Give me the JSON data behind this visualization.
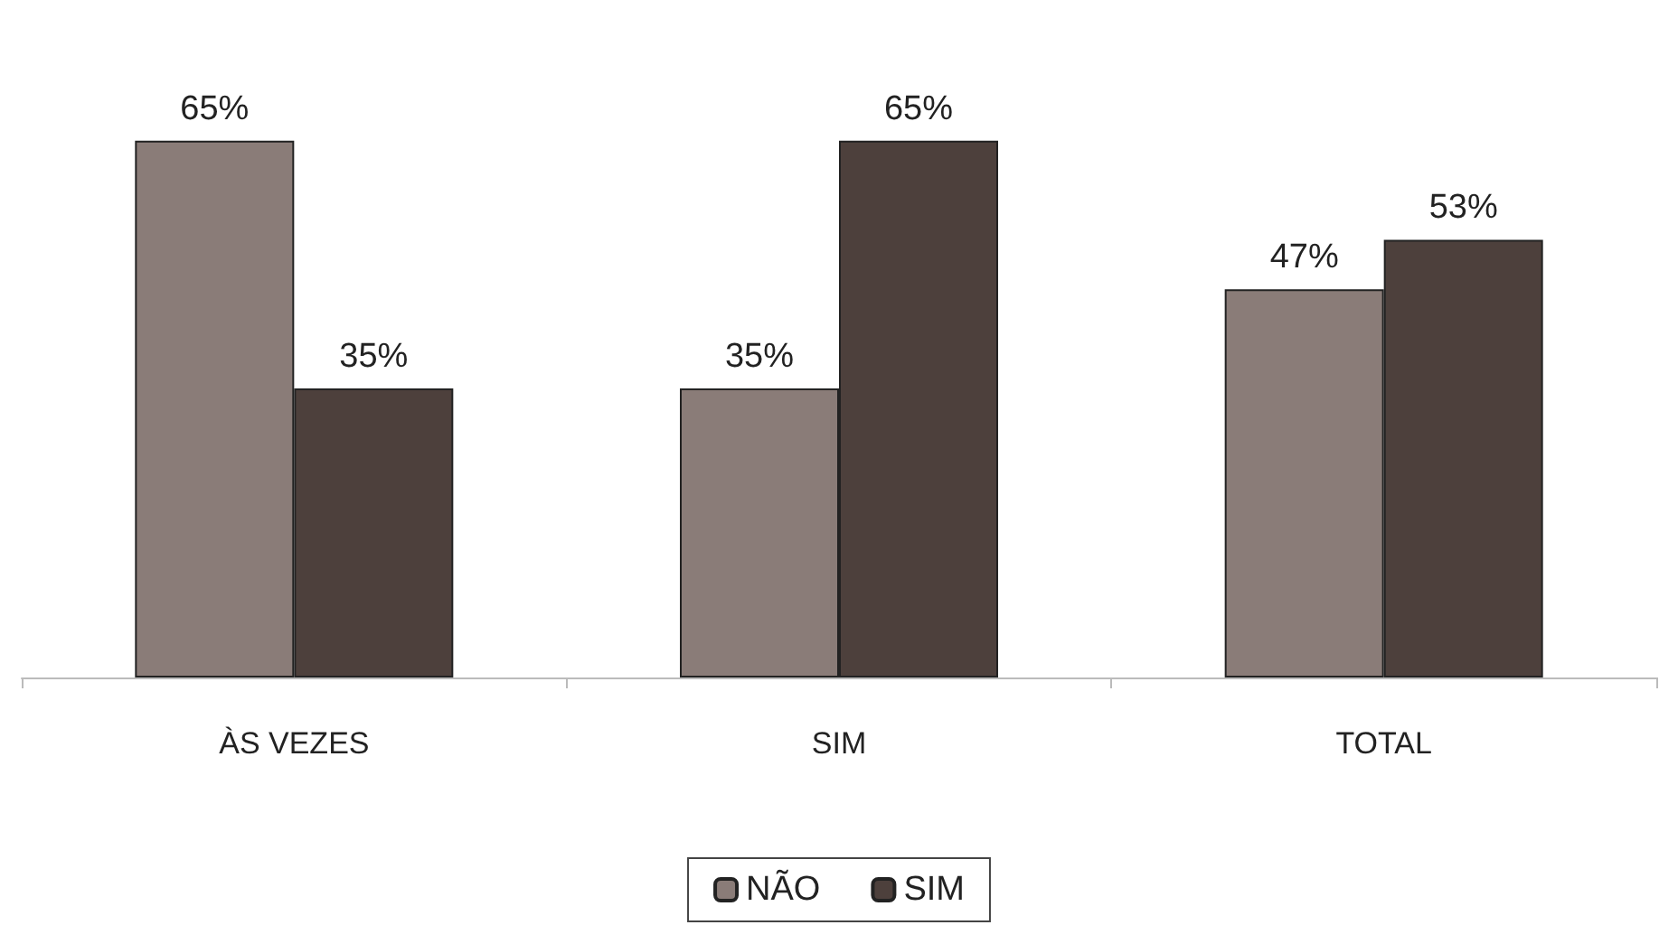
{
  "chart_data": {
    "type": "bar",
    "categories": [
      "ÀS VEZES",
      "SIM",
      "TOTAL"
    ],
    "series": [
      {
        "name": "NÃO",
        "color": "#8a7c78",
        "values": [
          65,
          35,
          47
        ],
        "value_labels": [
          "65%",
          "35%",
          "47%"
        ]
      },
      {
        "name": "SIM",
        "color": "#4d403c",
        "values": [
          35,
          65,
          53
        ],
        "value_labels": [
          "35%",
          "65%",
          "53%"
        ]
      }
    ],
    "legend": "bottom"
  }
}
